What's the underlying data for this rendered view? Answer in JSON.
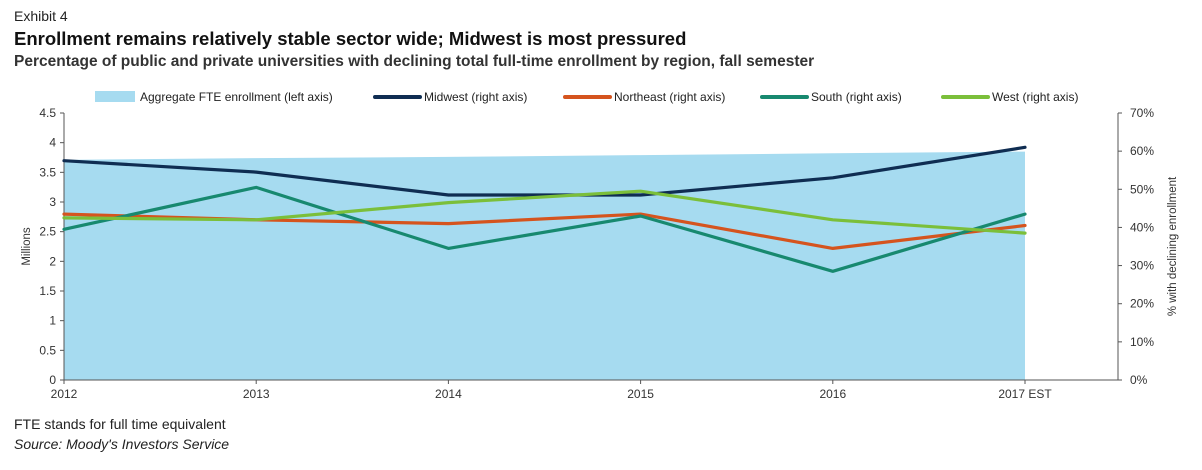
{
  "header": {
    "exhibit": "Exhibit 4",
    "title": "Enrollment remains relatively stable sector wide; Midwest is most pressured",
    "subtitle": "Percentage of public and private universities with declining total full-time enrollment by region, fall semester"
  },
  "footer": {
    "note": "FTE stands for full time equivalent",
    "source": "Source: Moody's Investors Service"
  },
  "chart_data": {
    "type": "line",
    "categories": [
      "2012",
      "2013",
      "2014",
      "2015",
      "2016",
      "2017 EST"
    ],
    "left_axis": {
      "label": "Millions",
      "range": [
        0,
        4.5
      ],
      "ticks": [
        "0",
        "0.5",
        "1",
        "1.5",
        "2",
        "2.5",
        "3",
        "3.5",
        "4",
        "4.5"
      ]
    },
    "right_axis": {
      "label": "% with declining enrollment",
      "range": [
        0,
        70
      ],
      "ticks": [
        "0%",
        "10%",
        "20%",
        "30%",
        "40%",
        "50%",
        "60%",
        "70%"
      ]
    },
    "series": [
      {
        "name": "Aggregate FTE enrollment (left axis)",
        "kind": "area",
        "axis": "left",
        "color": "#a6dbf0",
        "values": [
          3.71,
          3.74,
          3.76,
          3.79,
          3.82,
          3.85
        ]
      },
      {
        "name": "Midwest (right axis)",
        "kind": "line",
        "axis": "right",
        "color": "#0f2d52",
        "values": [
          57.5,
          54.5,
          48.5,
          48.5,
          53,
          61
        ]
      },
      {
        "name": "Northeast (right axis)",
        "kind": "line",
        "axis": "right",
        "color": "#d5541e",
        "values": [
          43.5,
          42,
          41,
          43.5,
          34.5,
          40.5
        ]
      },
      {
        "name": "South (right axis)",
        "kind": "line",
        "axis": "right",
        "color": "#17896f",
        "values": [
          39.5,
          50.5,
          34.5,
          43,
          28.5,
          43.5
        ]
      },
      {
        "name": "West (right axis)",
        "kind": "line",
        "axis": "right",
        "color": "#7bbf3a",
        "values": [
          42.5,
          42,
          46.5,
          49.5,
          42,
          38.5
        ]
      }
    ],
    "grid": false,
    "legend_position": "top"
  }
}
